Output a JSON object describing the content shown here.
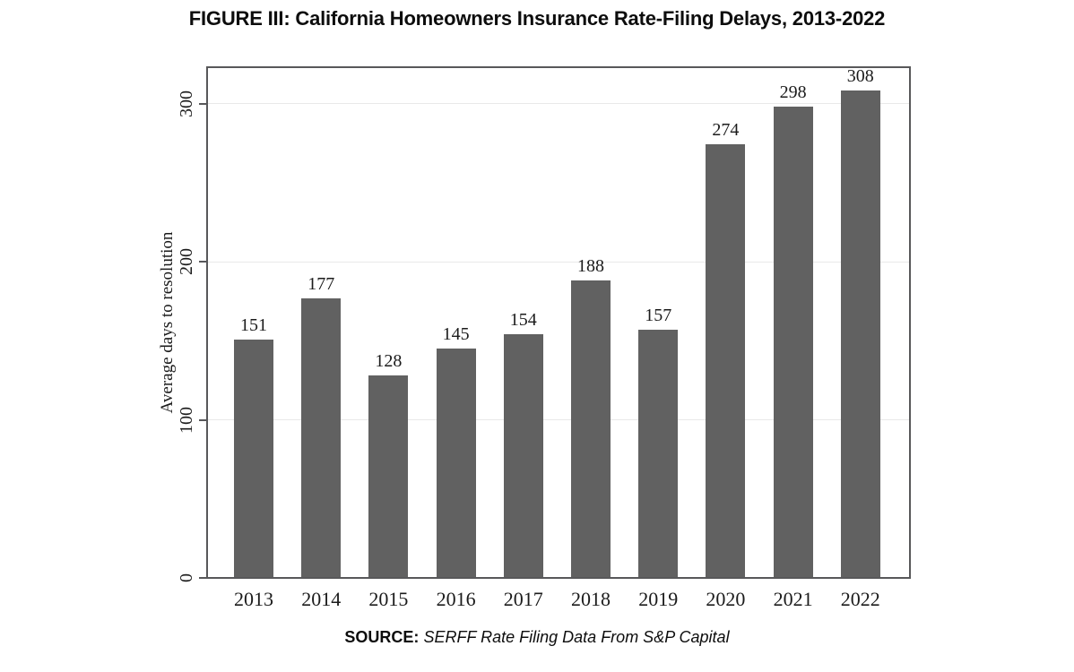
{
  "figure": {
    "title": "FIGURE III: California Homeowners Insurance Rate-Filing Delays, 2013-2022",
    "source_label": "SOURCE:",
    "source_text": "SERFF Rate Filing Data From S&P Capital"
  },
  "chart_data": {
    "type": "bar",
    "title": "FIGURE III: California Homeowners Insurance Rate-Filing Delays, 2013-2022",
    "categories": [
      "2013",
      "2014",
      "2015",
      "2016",
      "2017",
      "2018",
      "2019",
      "2020",
      "2021",
      "2022"
    ],
    "values": [
      151,
      177,
      128,
      145,
      154,
      188,
      157,
      274,
      298,
      308
    ],
    "bar_labels": [
      "151",
      "177",
      "128",
      "145",
      "154",
      "188",
      "157",
      "274",
      "298",
      "308"
    ],
    "xlabel": "",
    "ylabel": "Average days to resolution",
    "yticks": [
      0,
      100,
      200,
      300
    ],
    "ylim": [
      0,
      323
    ],
    "grid": true,
    "legend": "none",
    "bar_color": "#616161",
    "axis_color": "#58585a",
    "grid_color": "#e9e9e9",
    "text_color": "#1b1b1b"
  }
}
